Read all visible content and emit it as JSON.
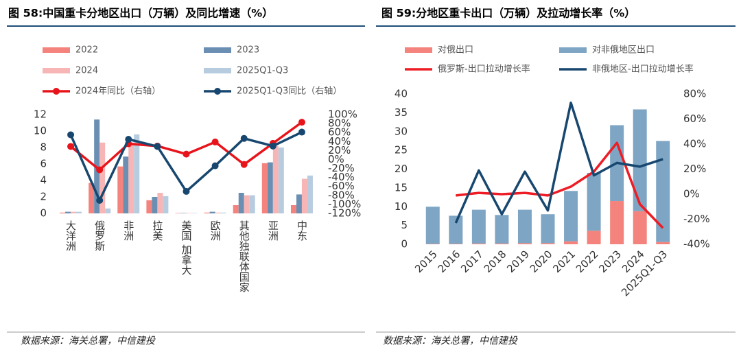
{
  "chart_data": [
    {
      "type": "bar",
      "title": "图 58:中国重卡分地区出口（万辆）及同比增速（%）",
      "source": "数据来源：海关总署，中信建投",
      "legend": "top",
      "grid": false,
      "categories": [
        "大洋洲",
        "俄罗斯",
        "非洲",
        "拉美",
        "美国 加拿大",
        "欧洲",
        "其他独联体国家",
        "亚洲",
        "中东"
      ],
      "series": [
        {
          "name": "2022",
          "color": "#f4837d",
          "values": [
            0.1,
            3.7,
            5.7,
            1.6,
            0.05,
            0.1,
            1.0,
            6.1,
            1.0
          ]
        },
        {
          "name": "2023",
          "color": "#6b8fb3",
          "values": [
            0.2,
            11.4,
            6.9,
            2.0,
            0.05,
            0.2,
            2.5,
            6.2,
            2.3
          ]
        },
        {
          "name": "2024",
          "color": "#f7b6b5",
          "values": [
            0.2,
            8.6,
            8.6,
            2.5,
            0.05,
            0.1,
            2.2,
            8.2,
            4.2
          ]
        },
        {
          "name": "2025Q1-Q3",
          "color": "#b8cce0",
          "values": [
            0.2,
            0.6,
            9.6,
            2.1,
            0.05,
            0.1,
            2.2,
            8.0,
            4.6
          ]
        },
        {
          "name": "2024年同比（右轴）",
          "type": "line",
          "axis": "y2",
          "color": "#e8141b",
          "values": [
            29,
            -23,
            35,
            30,
            12,
            39,
            -11,
            36,
            83
          ]
        },
        {
          "name": "2025Q1-Q3同比（右轴）",
          "type": "line",
          "axis": "y2",
          "color": "#17476f",
          "values": [
            55,
            -91,
            45,
            29,
            -71,
            -14,
            47,
            30,
            61
          ]
        }
      ],
      "ylim": [
        0,
        12
      ],
      "yticks": [
        0,
        2,
        4,
        6,
        8,
        10,
        12
      ],
      "y2lim": [
        -120,
        100
      ],
      "y2ticks": [
        {
          "value": 100,
          "label": "100%"
        },
        {
          "value": 80,
          "label": "80%"
        },
        {
          "value": 60,
          "label": "60%"
        },
        {
          "value": 40,
          "label": "40%"
        },
        {
          "value": 20,
          "label": "20%"
        },
        {
          "value": 0,
          "label": "0%"
        },
        {
          "value": -20,
          "label": "-20%"
        },
        {
          "value": -40,
          "label": "-40%"
        },
        {
          "value": -60,
          "label": "-60%"
        },
        {
          "value": -80,
          "label": "-80%"
        },
        {
          "value": -100,
          "label": "-100%"
        },
        {
          "value": -120,
          "label": "-120%"
        }
      ]
    },
    {
      "type": "bar",
      "stacked": true,
      "title": "图 59:分地区重卡出口（万辆）及拉动增长率（%）",
      "source": "数据来源：海关总署，中信建投",
      "legend": "top",
      "grid": false,
      "categories": [
        "2015",
        "2016",
        "2017",
        "2018",
        "2019",
        "2020",
        "2021",
        "2022",
        "2023",
        "2024",
        "2025Q1-Q3"
      ],
      "series": [
        {
          "name": "对俄出口",
          "color": "#f4837d",
          "values": [
            0.1,
            0.1,
            0.2,
            0.2,
            0.3,
            0.3,
            0.8,
            3.6,
            11.5,
            8.8,
            0.6
          ]
        },
        {
          "name": "对非俄地区出口",
          "color": "#7ea6c4",
          "values": [
            9.9,
            7.5,
            9.0,
            7.6,
            8.9,
            7.7,
            13.4,
            15.4,
            20.2,
            27.1,
            26.9
          ]
        },
        {
          "name": "俄罗斯-出口拉动增长率",
          "type": "line",
          "axis": "y2",
          "color": "#ee1c24",
          "values": [
            null,
            -1,
            1,
            0,
            1,
            -1,
            6,
            18,
            41,
            -8,
            -27
          ]
        },
        {
          "name": "非俄地区-出口拉动增长率",
          "type": "line",
          "axis": "y2",
          "color": "#17476f",
          "values": [
            null,
            -23,
            19,
            -16,
            18,
            -13,
            73,
            15,
            25,
            22,
            28
          ]
        }
      ],
      "ylim": [
        0,
        40
      ],
      "yticks": [
        0,
        5,
        10,
        15,
        20,
        25,
        30,
        35,
        40
      ],
      "y2lim": [
        -40,
        80
      ],
      "y2ticks": [
        {
          "value": 80,
          "label": "80%"
        },
        {
          "value": 60,
          "label": "60%"
        },
        {
          "value": 40,
          "label": "40%"
        },
        {
          "value": 20,
          "label": "20%"
        },
        {
          "value": 0,
          "label": "0%"
        },
        {
          "value": -20,
          "label": "-20%"
        },
        {
          "value": -40,
          "label": "-40%"
        }
      ]
    }
  ]
}
